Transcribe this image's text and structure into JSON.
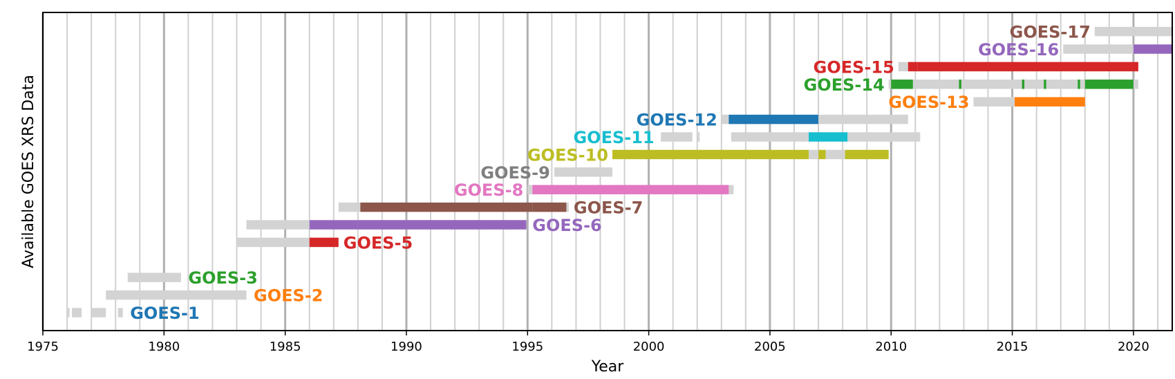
{
  "chart_data": {
    "type": "timeline",
    "xlabel": "Year",
    "ylabel": "Available GOES XRS Data",
    "xlim": [
      1975,
      2021.6
    ],
    "x_ticks": [
      1975,
      1980,
      1985,
      1990,
      1995,
      2000,
      2005,
      2010,
      2015,
      2020
    ],
    "grid": "vertical, yearly",
    "colors": {
      "unavailable": "#d3d3d3",
      "major_grid": "#b0b0b0",
      "minor_grid": "#d0d0d0"
    },
    "series": [
      {
        "name": "GOES-1",
        "color": "#1f77b4",
        "label_side": "right",
        "label_x": 1978.6,
        "gray": [
          [
            1976.0,
            1976.1
          ],
          [
            1976.2,
            1976.6
          ],
          [
            1977.0,
            1977.6
          ],
          [
            1978.1,
            1978.3
          ]
        ],
        "data": []
      },
      {
        "name": "GOES-2",
        "color": "#ff7f0e",
        "label_side": "right",
        "label_x": 1983.7,
        "gray": [
          [
            1977.6,
            1983.4
          ]
        ],
        "data": []
      },
      {
        "name": "GOES-3",
        "color": "#2ca02c",
        "label_side": "right",
        "label_x": 1981.0,
        "gray": [
          [
            1978.5,
            1980.7
          ]
        ],
        "data": []
      },
      {
        "name": "GOES-5",
        "color": "#d62728",
        "label_side": "right",
        "label_x": 1987.4,
        "gray": [
          [
            1983.0,
            1986.0
          ]
        ],
        "data": [
          [
            1986.0,
            1987.2
          ]
        ]
      },
      {
        "name": "GOES-6",
        "color": "#9467bd",
        "label_side": "right",
        "label_x": 1995.2,
        "gray": [
          [
            1983.4,
            1986.0
          ],
          [
            1988.0,
            1994.95
          ]
        ],
        "data": [
          [
            1986.0,
            1988.0
          ],
          [
            1988.0,
            1994.95
          ]
        ]
      },
      {
        "name": "GOES-7",
        "color": "#8c564b",
        "label_side": "right",
        "label_x": 1996.9,
        "gray": [
          [
            1987.2,
            1988.1
          ],
          [
            1995.2,
            1996.7
          ]
        ],
        "data": [
          [
            1988.1,
            1995.2
          ],
          [
            1995.2,
            1996.6
          ]
        ]
      },
      {
        "name": "GOES-8",
        "color": "#e377c2",
        "label_side": "left",
        "label_x": 1995.0,
        "gray": [
          [
            1995.0,
            1995.2
          ],
          [
            2003.3,
            2003.5
          ]
        ],
        "data": [
          [
            1995.2,
            2003.3
          ]
        ]
      },
      {
        "name": "GOES-9",
        "color": "#7f7f7f",
        "label_side": "left",
        "label_x": 1996.1,
        "gray": [
          [
            1996.1,
            1998.5
          ]
        ],
        "data": []
      },
      {
        "name": "GOES-10",
        "color": "#bcbd22",
        "label_side": "left",
        "label_x": 1998.5,
        "gray": [
          [
            2006.6,
            2007.0
          ],
          [
            2007.3,
            2008.1
          ]
        ],
        "data": [
          [
            1998.5,
            2006.6
          ],
          [
            2007.0,
            2007.3
          ],
          [
            2008.1,
            2009.9
          ]
        ]
      },
      {
        "name": "GOES-11",
        "color": "#17becf",
        "label_side": "left",
        "label_x": 2000.4,
        "gray": [
          [
            2000.5,
            2001.8
          ],
          [
            2002.0,
            2002.1
          ],
          [
            2003.4,
            2006.6
          ],
          [
            2008.2,
            2011.2
          ]
        ],
        "data": [
          [
            2006.6,
            2008.2
          ]
        ]
      },
      {
        "name": "GOES-12",
        "color": "#1f77b4",
        "label_side": "left",
        "label_x": 2003.0,
        "gray": [
          [
            2003.0,
            2003.3
          ],
          [
            2007.0,
            2010.7
          ]
        ],
        "data": [
          [
            2003.3,
            2007.0
          ]
        ]
      },
      {
        "name": "GOES-13",
        "color": "#ff7f0e",
        "label_side": "left",
        "label_x": 2013.4,
        "gray": [
          [
            2013.4,
            2015.1
          ]
        ],
        "data": [
          [
            2015.1,
            2018.0
          ]
        ]
      },
      {
        "name": "GOES-14",
        "color": "#2ca02c",
        "label_side": "left",
        "label_x": 2009.9,
        "gray": [
          [
            2009.9,
            2010.0
          ],
          [
            2010.9,
            2012.8
          ],
          [
            2012.9,
            2015.4
          ],
          [
            2015.5,
            2016.3
          ],
          [
            2016.4,
            2017.7
          ],
          [
            2017.8,
            2018.0
          ],
          [
            2020.0,
            2020.2
          ]
        ],
        "data": [
          [
            2010.0,
            2010.9
          ],
          [
            2012.8,
            2012.9
          ],
          [
            2015.4,
            2015.5
          ],
          [
            2016.3,
            2016.4
          ],
          [
            2017.7,
            2017.8
          ],
          [
            2018.0,
            2020.0
          ]
        ]
      },
      {
        "name": "GOES-15",
        "color": "#d62728",
        "label_side": "left",
        "label_x": 2010.3,
        "gray": [
          [
            2010.3,
            2010.7
          ]
        ],
        "data": [
          [
            2010.7,
            2011.1
          ],
          [
            2011.1,
            2020.2
          ]
        ]
      },
      {
        "name": "GOES-16",
        "color": "#9467bd",
        "label_side": "left",
        "label_x": 2017.1,
        "gray": [
          [
            2017.1,
            2020.0
          ]
        ],
        "data": [
          [
            2020.0,
            2021.6
          ]
        ]
      },
      {
        "name": "GOES-17",
        "color": "#8c564b",
        "label_side": "left",
        "label_x": 2018.4,
        "gray": [
          [
            2018.4,
            2021.6
          ]
        ],
        "data": []
      }
    ]
  }
}
